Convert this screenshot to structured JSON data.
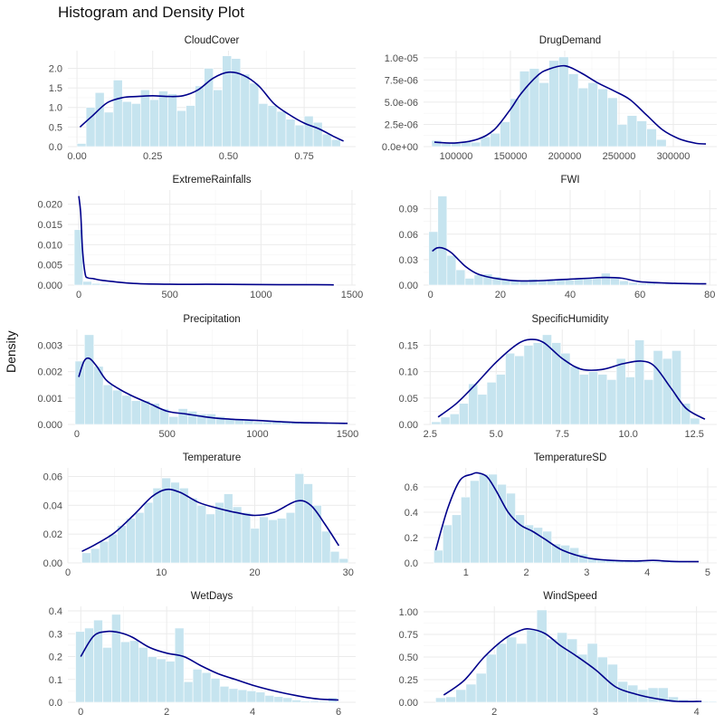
{
  "title": "Histogram and Density Plot",
  "ylabel": "Density",
  "colors": {
    "bar": "#c6e4ef",
    "bar_stroke": "#ffffff",
    "line": "#00008b",
    "grid": "#ebebeb",
    "grid_minor": "#f4f4f4"
  },
  "chart_data": [
    {
      "type": "bar",
      "title": "CloudCover",
      "xlim": [
        -0.03,
        0.92
      ],
      "ylim": [
        0,
        2.45
      ],
      "xticks": [
        0.0,
        0.25,
        0.5,
        0.75
      ],
      "xtick_labels": [
        "0.00",
        "0.25",
        "0.50",
        "0.75"
      ],
      "yticks": [
        0.0,
        0.5,
        1.0,
        1.5,
        2.0
      ],
      "ytick_labels": [
        "0.0",
        "0.5",
        "1.0",
        "1.5",
        "2.0"
      ],
      "bin_start": 0.0,
      "bin_width": 0.03,
      "values": [
        0.08,
        1.0,
        1.38,
        0.88,
        1.7,
        1.15,
        1.1,
        1.45,
        1.2,
        1.42,
        1.35,
        0.92,
        1.05,
        1.55,
        2.0,
        1.45,
        2.32,
        2.25,
        1.85,
        1.62,
        1.1,
        1.05,
        0.9,
        0.7,
        0.55,
        0.78,
        0.62,
        0.32,
        0.18
      ],
      "density_x": [
        0.01,
        0.05,
        0.1,
        0.15,
        0.2,
        0.25,
        0.3,
        0.35,
        0.4,
        0.45,
        0.5,
        0.55,
        0.6,
        0.65,
        0.7,
        0.75,
        0.8,
        0.85,
        0.88
      ],
      "density_y": [
        0.5,
        0.78,
        1.12,
        1.25,
        1.28,
        1.3,
        1.28,
        1.3,
        1.45,
        1.75,
        1.9,
        1.82,
        1.55,
        1.1,
        0.82,
        0.6,
        0.45,
        0.25,
        0.14
      ]
    },
    {
      "type": "bar",
      "title": "DrugDemand",
      "xlim": [
        70000,
        340000
      ],
      "ylim": [
        0,
        1.08e-05
      ],
      "xticks": [
        100000,
        150000,
        200000,
        250000,
        300000
      ],
      "xtick_labels": [
        "100000",
        "150000",
        "200000",
        "250000",
        "300000"
      ],
      "yticks": [
        0,
        2.5e-06,
        5e-06,
        7.5e-06,
        1e-05
      ],
      "ytick_labels": [
        "0.0e+00",
        "2.5e-06",
        "5.0e-06",
        "7.5e-06",
        "1.0e-05"
      ],
      "bin_start": 77500,
      "bin_width": 9000,
      "values": [
        7e-07,
        3.5e-07,
        4e-07,
        6e-07,
        5e-07,
        1.1e-06,
        1.5e-06,
        2.8e-06,
        5.4e-06,
        8.5e-06,
        8.8e-06,
        7.2e-06,
        9.7e-06,
        1.01e-05,
        8.2e-06,
        6.6e-06,
        7.2e-06,
        6.5e-06,
        5.5e-06,
        2.5e-06,
        3.5e-06,
        2.9e-06,
        2e-06,
        8e-07
      ],
      "density_x": [
        80000,
        100000,
        120000,
        135000,
        150000,
        160000,
        175000,
        185000,
        200000,
        215000,
        230000,
        245000,
        260000,
        275000,
        290000,
        305000,
        320000,
        330000
      ],
      "density_y": [
        5e-07,
        4.2e-07,
        8.5e-07,
        1.9e-06,
        4.2e-06,
        6e-06,
        8e-06,
        8.7e-06,
        9.1e-06,
        8.3e-06,
        7.2e-06,
        6.3e-06,
        5.3e-06,
        3.6e-06,
        1.9e-06,
        9e-07,
        4e-07,
        3e-07
      ]
    },
    {
      "type": "bar",
      "title": "ExtremeRainfalls",
      "xlim": [
        -60,
        1520
      ],
      "ylim": [
        0,
        0.0235
      ],
      "xticks": [
        0,
        500,
        1000,
        1500
      ],
      "xtick_labels": [
        "0",
        "500",
        "1000",
        "1500"
      ],
      "yticks": [
        0,
        0.005,
        0.01,
        0.015,
        0.02
      ],
      "ytick_labels": [
        "0.000",
        "0.005",
        "0.010",
        "0.015",
        "0.020"
      ],
      "bin_start": -25,
      "bin_width": 48,
      "values": [
        0.0137,
        0.0009,
        0.0004,
        0.0003,
        0.0002,
        0.0001,
        0.0001,
        8e-05,
        5e-05,
        5e-05,
        4e-05,
        3e-05,
        3e-05,
        2e-05,
        2e-05,
        2e-05,
        2e-05,
        1e-05,
        1e-05,
        1e-05,
        1e-05,
        1e-05,
        1e-05,
        1e-05,
        1e-05,
        1e-05,
        1e-05,
        1e-05,
        1e-05,
        1e-05
      ],
      "density_x": [
        0,
        10,
        20,
        35,
        50,
        80,
        120,
        200,
        300,
        500,
        700,
        900,
        1100,
        1300,
        1400
      ],
      "density_y": [
        0.022,
        0.018,
        0.009,
        0.0028,
        0.0018,
        0.0016,
        0.0012,
        0.0008,
        0.0004,
        0.0002,
        0.0002,
        0.00015,
        0.0001,
        0.0001,
        5e-05
      ]
    },
    {
      "type": "bar",
      "title": "FWI",
      "xlim": [
        -2,
        82
      ],
      "ylim": [
        0,
        0.112
      ],
      "xticks": [
        0,
        20,
        40,
        60,
        80
      ],
      "xtick_labels": [
        "0",
        "20",
        "40",
        "60",
        "80"
      ],
      "yticks": [
        0,
        0.03,
        0.06,
        0.09
      ],
      "ytick_labels": [
        "0.00",
        "0.03",
        "0.06",
        "0.09"
      ],
      "bin_start": -0.5,
      "bin_width": 2.6,
      "values": [
        0.063,
        0.105,
        0.035,
        0.018,
        0.008,
        0.012,
        0.013,
        0.01,
        0.006,
        0.005,
        0.005,
        0.007,
        0.006,
        0.007,
        0.006,
        0.006,
        0.007,
        0.008,
        0.008,
        0.014,
        0.008,
        0.005,
        0.003,
        0.002,
        0.002,
        0.001,
        0.001,
        0.001,
        0.001,
        0.001
      ],
      "density_x": [
        0.5,
        2,
        4,
        6,
        8,
        10,
        13,
        16,
        20,
        25,
        30,
        35,
        40,
        45,
        50,
        55,
        60,
        70,
        79
      ],
      "density_y": [
        0.04,
        0.044,
        0.043,
        0.038,
        0.03,
        0.022,
        0.014,
        0.01,
        0.007,
        0.005,
        0.005,
        0.006,
        0.007,
        0.008,
        0.009,
        0.008,
        0.004,
        0.002,
        0.0015
      ]
    },
    {
      "type": "bar",
      "title": "Precipitation",
      "xlim": [
        -50,
        1545
      ],
      "ylim": [
        0,
        0.0036
      ],
      "xticks": [
        0,
        500,
        1000,
        1500
      ],
      "xtick_labels": [
        "0",
        "500",
        "1000",
        "1500"
      ],
      "yticks": [
        0,
        0.001,
        0.002,
        0.003
      ],
      "ytick_labels": [
        "0.000",
        "0.001",
        "0.002",
        "0.003"
      ],
      "bin_start": -10,
      "bin_width": 52,
      "values": [
        0.0024,
        0.0034,
        0.0022,
        0.0015,
        0.0013,
        0.0011,
        0.0009,
        0.0009,
        0.0008,
        0.0006,
        0.0003,
        0.0006,
        0.0005,
        0.0004,
        0.0004,
        0.0003,
        0.0002,
        0.0002,
        0.0002,
        0.0001,
        0.0001,
        0.0001,
        0.0001,
        0.0001,
        0.0001,
        0.0001,
        8e-05,
        6e-05,
        5e-05
      ],
      "density_x": [
        10,
        40,
        70,
        110,
        160,
        220,
        300,
        400,
        500,
        600,
        700,
        800,
        1000,
        1200,
        1400,
        1500
      ],
      "density_y": [
        0.0018,
        0.0024,
        0.0025,
        0.0022,
        0.0017,
        0.0014,
        0.0011,
        0.0008,
        0.0005,
        0.0004,
        0.0003,
        0.00022,
        0.00015,
        8e-05,
        5e-05,
        4e-05
      ]
    },
    {
      "type": "bar",
      "title": "SpecificHumidity",
      "xlim": [
        2.25,
        13.35
      ],
      "ylim": [
        0,
        0.18
      ],
      "xticks": [
        2.5,
        5.0,
        7.5,
        10.0,
        12.5
      ],
      "xtick_labels": [
        "2.5",
        "5.0",
        "7.5",
        "10.0",
        "12.5"
      ],
      "yticks": [
        0,
        0.05,
        0.1,
        0.15
      ],
      "ytick_labels": [
        "0.00",
        "0.05",
        "0.10",
        "0.15"
      ],
      "bin_start": 2.55,
      "bin_width": 0.35,
      "values": [
        0.005,
        0.014,
        0.02,
        0.04,
        0.077,
        0.057,
        0.08,
        0.095,
        0.135,
        0.13,
        0.15,
        0.155,
        0.17,
        0.155,
        0.135,
        0.11,
        0.095,
        0.1,
        0.095,
        0.085,
        0.125,
        0.09,
        0.16,
        0.085,
        0.14,
        0.125,
        0.14,
        0.04,
        0.012
      ],
      "density_x": [
        2.8,
        3.5,
        4.2,
        5.0,
        5.8,
        6.3,
        6.8,
        7.5,
        8.2,
        9.0,
        9.8,
        10.5,
        11.0,
        11.6,
        12.2,
        12.9
      ],
      "density_y": [
        0.014,
        0.04,
        0.075,
        0.118,
        0.152,
        0.161,
        0.155,
        0.125,
        0.105,
        0.104,
        0.115,
        0.12,
        0.11,
        0.07,
        0.03,
        0.01
      ]
    },
    {
      "type": "bar",
      "title": "Temperature",
      "xlim": [
        0,
        30.8
      ],
      "ylim": [
        0,
        0.066
      ],
      "xticks": [
        0,
        10,
        20,
        30
      ],
      "xtick_labels": [
        "0",
        "10",
        "20",
        "30"
      ],
      "yticks": [
        0,
        0.02,
        0.04,
        0.06
      ],
      "ytick_labels": [
        "0.00",
        "0.02",
        "0.04",
        "0.06"
      ],
      "bin_start": 1.5,
      "bin_width": 0.95,
      "values": [
        0.007,
        0.01,
        0.015,
        0.02,
        0.026,
        0.031,
        0.035,
        0.042,
        0.052,
        0.059,
        0.056,
        0.052,
        0.045,
        0.04,
        0.034,
        0.042,
        0.048,
        0.039,
        0.035,
        0.024,
        0.032,
        0.03,
        0.031,
        0.035,
        0.062,
        0.055,
        0.04,
        0.022,
        0.008,
        0.003
      ],
      "density_x": [
        1.5,
        3,
        5,
        7,
        9,
        10.5,
        12,
        14,
        16,
        18,
        20,
        22,
        24.5,
        26,
        27.5,
        29
      ],
      "density_y": [
        0.008,
        0.013,
        0.021,
        0.033,
        0.046,
        0.051,
        0.049,
        0.042,
        0.038,
        0.035,
        0.033,
        0.035,
        0.043,
        0.04,
        0.027,
        0.012
      ]
    },
    {
      "type": "bar",
      "title": "TemperatureSD",
      "xlim": [
        0.3,
        5.15
      ],
      "ylim": [
        0,
        0.75
      ],
      "xticks": [
        1,
        2,
        3,
        4,
        5
      ],
      "xtick_labels": [
        "1",
        "2",
        "3",
        "4",
        "5"
      ],
      "yticks": [
        0,
        0.2,
        0.4,
        0.6
      ],
      "ytick_labels": [
        "0.0",
        "0.2",
        "0.4",
        "0.6"
      ],
      "bin_start": 0.47,
      "bin_width": 0.15,
      "values": [
        0.1,
        0.3,
        0.38,
        0.52,
        0.65,
        0.7,
        0.7,
        0.62,
        0.55,
        0.38,
        0.3,
        0.28,
        0.25,
        0.15,
        0.14,
        0.12,
        0.07,
        0.04,
        0.03,
        0.02,
        0.02,
        0.02,
        0.015,
        0.01,
        0.01,
        0.01,
        0.01,
        0.008
      ],
      "density_x": [
        0.5,
        0.7,
        0.9,
        1.1,
        1.2,
        1.35,
        1.5,
        1.7,
        1.9,
        2.1,
        2.3,
        2.6,
        3.0,
        3.4,
        3.8,
        4.1,
        4.4,
        4.85
      ],
      "density_y": [
        0.1,
        0.43,
        0.65,
        0.7,
        0.71,
        0.68,
        0.57,
        0.4,
        0.3,
        0.25,
        0.19,
        0.1,
        0.04,
        0.02,
        0.015,
        0.02,
        0.012,
        0.01
      ]
    },
    {
      "type": "bar",
      "title": "WetDays",
      "xlim": [
        -0.3,
        6.4
      ],
      "ylim": [
        0,
        0.42
      ],
      "xticks": [
        0,
        2,
        4,
        6
      ],
      "xtick_labels": [
        "0",
        "2",
        "4",
        "6"
      ],
      "yticks": [
        0,
        0.1,
        0.2,
        0.3,
        0.4
      ],
      "ytick_labels": [
        "0.0",
        "0.1",
        "0.2",
        "0.3",
        "0.4"
      ],
      "bin_start": -0.12,
      "bin_width": 0.21,
      "values": [
        0.31,
        0.325,
        0.36,
        0.24,
        0.385,
        0.265,
        0.27,
        0.24,
        0.2,
        0.19,
        0.18,
        0.325,
        0.09,
        0.145,
        0.13,
        0.105,
        0.07,
        0.06,
        0.055,
        0.05,
        0.045,
        0.03,
        0.025,
        0.02,
        0.01,
        0.005,
        0.005,
        0.005,
        0.02
      ],
      "density_x": [
        0.0,
        0.3,
        0.6,
        0.9,
        1.2,
        1.6,
        2.0,
        2.4,
        2.8,
        3.2,
        3.6,
        4.0,
        4.5,
        5.0,
        5.5,
        6.0
      ],
      "density_y": [
        0.2,
        0.29,
        0.31,
        0.305,
        0.285,
        0.24,
        0.215,
        0.2,
        0.16,
        0.125,
        0.1,
        0.075,
        0.05,
        0.03,
        0.015,
        0.01
      ]
    },
    {
      "type": "bar",
      "title": "WindSpeed",
      "xlim": [
        1.3,
        4.2
      ],
      "ylim": [
        0,
        1.06
      ],
      "xticks": [
        2,
        3,
        4
      ],
      "xtick_labels": [
        "2",
        "3",
        "4"
      ],
      "yticks": [
        0,
        0.25,
        0.5,
        0.75,
        1.0
      ],
      "ytick_labels": [
        "0.00",
        "0.25",
        "0.50",
        "0.75",
        "1.00"
      ],
      "bin_start": 1.42,
      "bin_width": 0.1,
      "values": [
        0.05,
        0.06,
        0.14,
        0.2,
        0.32,
        0.53,
        0.65,
        0.72,
        0.65,
        0.8,
        1.02,
        0.7,
        0.77,
        0.7,
        0.53,
        0.65,
        0.5,
        0.42,
        0.23,
        0.19,
        0.14,
        0.16,
        0.16,
        0.06,
        0.03,
        0.02,
        0.01,
        0.01
      ],
      "density_x": [
        1.5,
        1.7,
        1.9,
        2.1,
        2.25,
        2.35,
        2.5,
        2.65,
        2.8,
        3.0,
        3.2,
        3.4,
        3.6,
        3.8,
        4.05
      ],
      "density_y": [
        0.08,
        0.24,
        0.5,
        0.7,
        0.79,
        0.81,
        0.76,
        0.63,
        0.52,
        0.36,
        0.17,
        0.09,
        0.04,
        0.01,
        0.01
      ]
    }
  ]
}
